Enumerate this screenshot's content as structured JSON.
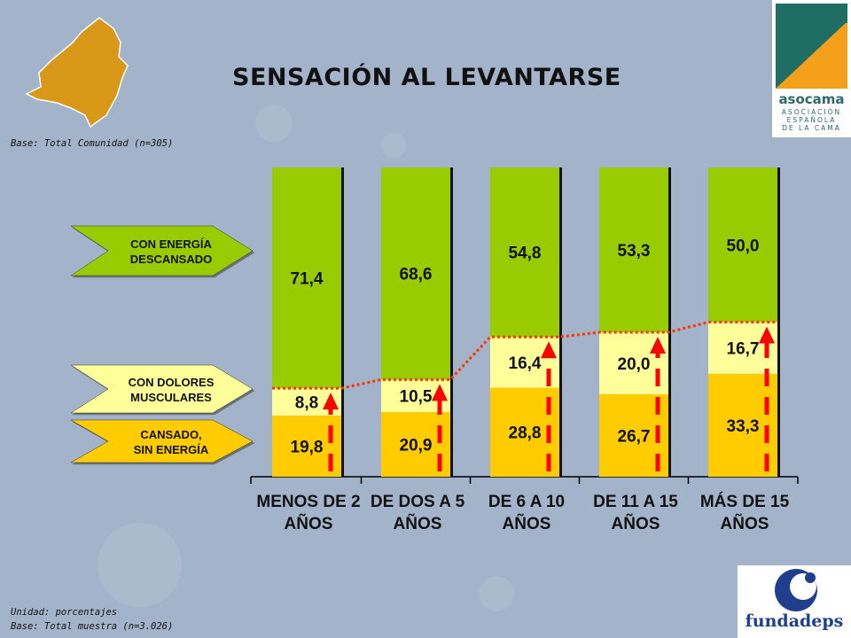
{
  "title": "SENSACIÓN AL LEVANTARSE",
  "base_top": "Base: Total Comunidad (n=305)",
  "unit_note": "Unidad: porcentajes",
  "base_bottom": "Base: Total muestra (n=3.026)",
  "logos": {
    "asocama": {
      "name": "asocama",
      "subtitle": "ASOCIACIÓN\nESPAÑOLA\nDE LA CAMA",
      "colors": [
        "#1f6e64",
        "#f5a01a"
      ]
    },
    "fundadeps": {
      "name": "fundadeps",
      "color": "#1f3f8c"
    }
  },
  "colors": {
    "background": "#a3b3c9",
    "energia": "#99cc00",
    "dolores": "#ffff99",
    "cansado": "#ffcc00",
    "trend": "#ff3300",
    "arrow": "#ff0000",
    "map": "#d99818"
  },
  "chart_data": {
    "type": "bar",
    "stacked": true,
    "categories": [
      "MENOS DE 2 AÑOS",
      "DE DOS A 5 AÑOS",
      "DE 6 A 10 AÑOS",
      "DE 11 A 15 AÑOS",
      "MÁS DE 15 AÑOS"
    ],
    "series": [
      {
        "name": "CANSADO, SIN ENERGÍA",
        "values": [
          19.8,
          20.9,
          28.8,
          26.7,
          33.3
        ],
        "labels": [
          "19,8",
          "20,9",
          "28,8",
          "26,7",
          "33,3"
        ]
      },
      {
        "name": "CON DOLORES MUSCULARES",
        "values": [
          8.8,
          10.5,
          16.4,
          20.0,
          16.7
        ],
        "labels": [
          "8,8",
          "10,5",
          "16,4",
          "20,0",
          "16,7"
        ]
      },
      {
        "name": "CON ENERGÍA DESCANSADO",
        "values": [
          71.4,
          68.6,
          54.8,
          53.3,
          50.0
        ],
        "labels": [
          "71,4",
          "68,6",
          "54,8",
          "53,3",
          "50,0"
        ]
      }
    ],
    "ylim": [
      0,
      100
    ],
    "legend_position": "left",
    "trend_line": "dotted line across the top of the CON DOLORES MUSCULARES segment"
  }
}
